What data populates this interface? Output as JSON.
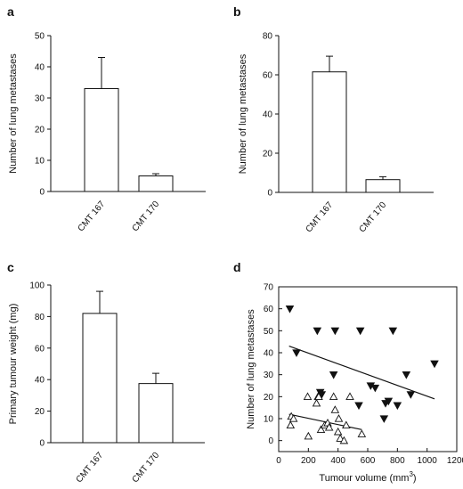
{
  "panels": [
    {
      "letter": "a"
    },
    {
      "letter": "b"
    },
    {
      "letter": "c"
    },
    {
      "letter": "d"
    }
  ],
  "chart_data": [
    {
      "type": "bar",
      "panel": "a",
      "categories": [
        "CMT 167",
        "CMT 170"
      ],
      "values": [
        33,
        5
      ],
      "errors": [
        10,
        0.7
      ],
      "ylabel": "Number of lung metastases",
      "ylim": [
        0,
        50
      ],
      "yticks": [
        0,
        10,
        20,
        30,
        40,
        50
      ]
    },
    {
      "type": "bar",
      "panel": "b",
      "categories": [
        "CMT 167",
        "CMT 170"
      ],
      "values": [
        61.5,
        6.5
      ],
      "errors": [
        8,
        1.5
      ],
      "ylabel": "Number of lung metastases",
      "ylim": [
        0,
        80
      ],
      "yticks": [
        0,
        20,
        40,
        60,
        80
      ]
    },
    {
      "type": "bar",
      "panel": "c",
      "categories": [
        "CMT 167",
        "CMT 170"
      ],
      "values": [
        82,
        37.5
      ],
      "errors": [
        14,
        6.5
      ],
      "ylabel": "Primary tumour weight (mg)",
      "ylim": [
        0,
        100
      ],
      "yticks": [
        0,
        20,
        40,
        60,
        80,
        100
      ]
    },
    {
      "type": "scatter",
      "panel": "d",
      "xlabel": "Tumour volume (mm3)",
      "xlabel_main": "Tumour volume (mm",
      "xlabel_sup": "3",
      "xlabel_close": ")",
      "ylabel": "Number of lung metastases",
      "xlim": [
        0,
        1200
      ],
      "ylim": [
        -5,
        70
      ],
      "xticks": [
        0,
        200,
        400,
        600,
        800,
        1000,
        1200
      ],
      "yticks": [
        0,
        10,
        20,
        30,
        40,
        50,
        60,
        70
      ],
      "series": [
        {
          "marker": "open-triangle-up",
          "points": [
            [
              80,
              7
            ],
            [
              85,
              11
            ],
            [
              100,
              10
            ],
            [
              195,
              20
            ],
            [
              200,
              2
            ],
            [
              255,
              17
            ],
            [
              265,
              20
            ],
            [
              270,
              20
            ],
            [
              285,
              5
            ],
            [
              310,
              7
            ],
            [
              330,
              8
            ],
            [
              340,
              6
            ],
            [
              370,
              20
            ],
            [
              380,
              14
            ],
            [
              400,
              4
            ],
            [
              405,
              10
            ],
            [
              415,
              1
            ],
            [
              440,
              0
            ],
            [
              455,
              7
            ],
            [
              480,
              20
            ],
            [
              560,
              3
            ]
          ],
          "fit": [
            [
              70,
              12
            ],
            [
              560,
              5
            ]
          ]
        },
        {
          "marker": "filled-triangle-down",
          "points": [
            [
              75,
              60
            ],
            [
              120,
              40
            ],
            [
              260,
              50
            ],
            [
              280,
              22
            ],
            [
              290,
              21
            ],
            [
              370,
              30
            ],
            [
              380,
              50
            ],
            [
              540,
              16
            ],
            [
              550,
              50
            ],
            [
              620,
              25
            ],
            [
              650,
              24
            ],
            [
              710,
              10
            ],
            [
              720,
              17
            ],
            [
              740,
              18
            ],
            [
              770,
              50
            ],
            [
              800,
              16
            ],
            [
              860,
              30
            ],
            [
              890,
              21
            ],
            [
              1050,
              35
            ]
          ],
          "fit": [
            [
              70,
              43
            ],
            [
              1050,
              19
            ]
          ]
        }
      ]
    }
  ]
}
